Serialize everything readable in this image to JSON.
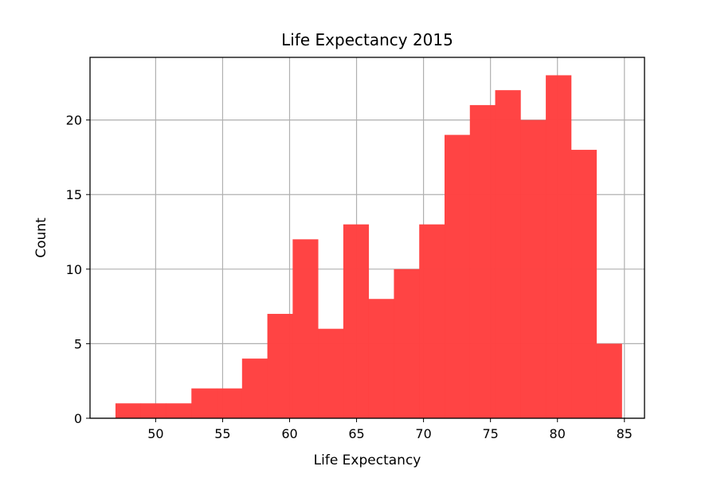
{
  "chart_data": {
    "type": "bar",
    "title": "Life Expectancy 2015",
    "xlabel": "Life Expectancy",
    "ylabel": "Count",
    "xlim": [
      45.1,
      86.5
    ],
    "ylim": [
      0,
      24.2
    ],
    "bin_start": 47.0,
    "bin_width": 1.89,
    "values": [
      1,
      1,
      1,
      2,
      2,
      4,
      7,
      12,
      6,
      13,
      8,
      10,
      13,
      19,
      21,
      22,
      20,
      23,
      18,
      5
    ],
    "x_ticks": [
      50,
      55,
      60,
      65,
      70,
      75,
      80,
      85
    ],
    "y_ticks": [
      0,
      5,
      10,
      15,
      20
    ],
    "bar_color": "#ff4040",
    "grid": true
  }
}
